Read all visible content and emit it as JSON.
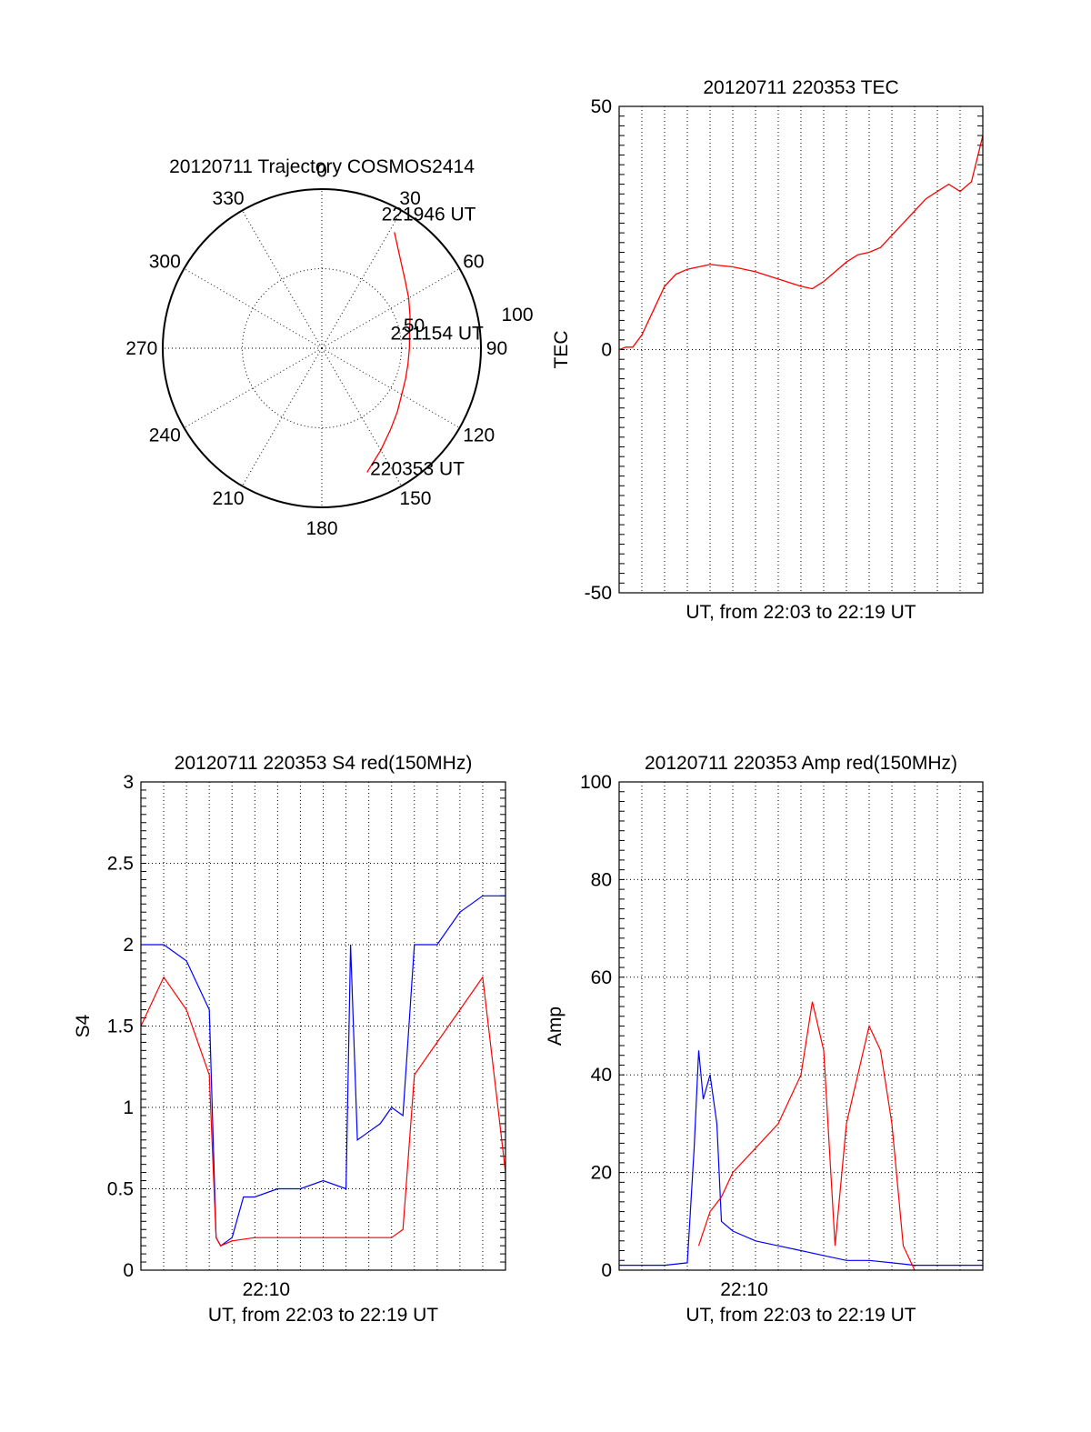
{
  "chart_data": [
    {
      "type": "polar",
      "panel": "trajectory",
      "title": "20120711 Trajectory COSMOS2414",
      "angle_labels": [
        "0",
        "30",
        "60",
        "90",
        "120",
        "150",
        "180",
        "210",
        "240",
        "270",
        "300",
        "330"
      ],
      "radial_labels": [
        "50",
        "100"
      ],
      "rlim": [
        0,
        100
      ],
      "grid": true,
      "series": [
        {
          "color": "#ff0000",
          "points": [
            {
              "az": 160,
              "r": 83
            },
            {
              "az": 150,
              "r": 74
            },
            {
              "az": 140,
              "r": 67
            },
            {
              "az": 130,
              "r": 62
            },
            {
              "az": 120,
              "r": 58
            },
            {
              "az": 110,
              "r": 56
            },
            {
              "az": 100,
              "r": 55
            },
            {
              "az": 90,
              "r": 55
            },
            {
              "az": 80,
              "r": 56
            },
            {
              "az": 70,
              "r": 59
            },
            {
              "az": 60,
              "r": 63
            },
            {
              "az": 50,
              "r": 68
            },
            {
              "az": 40,
              "r": 76
            },
            {
              "az": 32,
              "r": 86
            }
          ]
        }
      ],
      "annotations": [
        {
          "text": "221946 UT",
          "az": 31,
          "r": 95
        },
        {
          "text": "221154 UT",
          "az": 83,
          "r": 55
        },
        {
          "text": "220353 UT",
          "az": 152,
          "r": 89
        }
      ]
    },
    {
      "type": "line",
      "panel": "tec",
      "title": "20120711 220353 TEC",
      "xlabel": "UT, from 22:03 to 22:19 UT",
      "ylabel": "TEC",
      "xlim": [
        0,
        16
      ],
      "ylim": [
        -50,
        50
      ],
      "yticks": [
        "-50",
        "0",
        "50"
      ],
      "grid": true,
      "series": [
        {
          "color": "#ff0000",
          "x": [
            0.0,
            0.3,
            0.6,
            1.0,
            1.5,
            2.0,
            2.5,
            3.0,
            3.5,
            4.0,
            5.0,
            6.0,
            7.0,
            8.0,
            8.5,
            9.0,
            9.5,
            10.0,
            10.5,
            11.0,
            11.5,
            12.0,
            12.5,
            13.0,
            13.5,
            14.0,
            14.5,
            15.0,
            15.5,
            16.0
          ],
          "y": [
            0.0,
            0.5,
            0.5,
            3.0,
            8.0,
            13.0,
            15.5,
            16.5,
            17.0,
            17.5,
            17.0,
            16.0,
            14.5,
            13.0,
            12.5,
            14.0,
            16.0,
            18.0,
            19.5,
            20.0,
            21.0,
            23.5,
            26.0,
            28.5,
            31.0,
            32.5,
            34.0,
            32.5,
            34.5,
            44.0
          ]
        }
      ]
    },
    {
      "type": "line",
      "panel": "s4",
      "title": "20120711 220353 S4 red(150MHz)",
      "xlabel": "UT, from 22:03 to 22:19 UT",
      "ylabel": "S4",
      "xlim": [
        0,
        16
      ],
      "ylim": [
        0,
        3
      ],
      "yticks": [
        "0",
        "0.5",
        "1",
        "1.5",
        "2",
        "2.5",
        "3"
      ],
      "xticks": [
        {
          "x": 5.5,
          "label": "22:10"
        }
      ],
      "grid": true,
      "series": [
        {
          "color": "#0000ff",
          "x": [
            0,
            1,
            2,
            3,
            3.3,
            3.5,
            4,
            4.5,
            5,
            6,
            7,
            8,
            9,
            9.2,
            9.5,
            10,
            10.5,
            11,
            11.5,
            12,
            13,
            14,
            15,
            16
          ],
          "y": [
            2.0,
            2.0,
            1.9,
            1.6,
            0.2,
            0.15,
            0.2,
            0.45,
            0.45,
            0.5,
            0.5,
            0.55,
            0.5,
            2.0,
            0.8,
            0.85,
            0.9,
            1.0,
            0.95,
            2.0,
            2.0,
            2.2,
            2.3,
            2.3
          ]
        },
        {
          "color": "#ff0000",
          "x": [
            0,
            1,
            2,
            3,
            3.3,
            3.5,
            4,
            5,
            6,
            7,
            8,
            9,
            9.5,
            10,
            11,
            11.5,
            12,
            13,
            14,
            15,
            15.5,
            16
          ],
          "y": [
            1.5,
            1.8,
            1.6,
            1.2,
            0.2,
            0.15,
            0.18,
            0.2,
            0.2,
            0.2,
            0.2,
            0.2,
            0.2,
            0.2,
            0.2,
            0.25,
            1.2,
            1.4,
            1.6,
            1.8,
            1.2,
            0.6
          ]
        }
      ]
    },
    {
      "type": "line",
      "panel": "amp",
      "title": "20120711 220353 Amp red(150MHz)",
      "xlabel": "UT, from 22:03 to 22:19 UT",
      "ylabel": "Amp",
      "xlim": [
        0,
        16
      ],
      "ylim": [
        0,
        100
      ],
      "yticks": [
        "0",
        "20",
        "40",
        "60",
        "80",
        "100"
      ],
      "xticks": [
        {
          "x": 5.5,
          "label": "22:10"
        }
      ],
      "grid": true,
      "series": [
        {
          "color": "#0000ff",
          "x": [
            0,
            1,
            2,
            3,
            3.3,
            3.5,
            3.7,
            4,
            4.3,
            4.5,
            5,
            6,
            7,
            8,
            9,
            10,
            11,
            12,
            13,
            14,
            15,
            16
          ],
          "y": [
            1,
            1,
            1,
            1.5,
            25,
            45,
            35,
            40,
            30,
            10,
            8,
            6,
            5,
            4,
            3,
            2,
            2,
            1.5,
            1,
            1,
            1,
            1
          ]
        },
        {
          "color": "#ff0000",
          "x": [
            3.5,
            4,
            4.5,
            5,
            6,
            7,
            8,
            8.5,
            9,
            9.5,
            10,
            10.5,
            11,
            11.5,
            12,
            12.5,
            13
          ],
          "y": [
            5,
            12,
            15,
            20,
            25,
            30,
            40,
            55,
            45,
            5,
            30,
            40,
            50,
            45,
            30,
            5,
            0
          ]
        }
      ]
    }
  ]
}
